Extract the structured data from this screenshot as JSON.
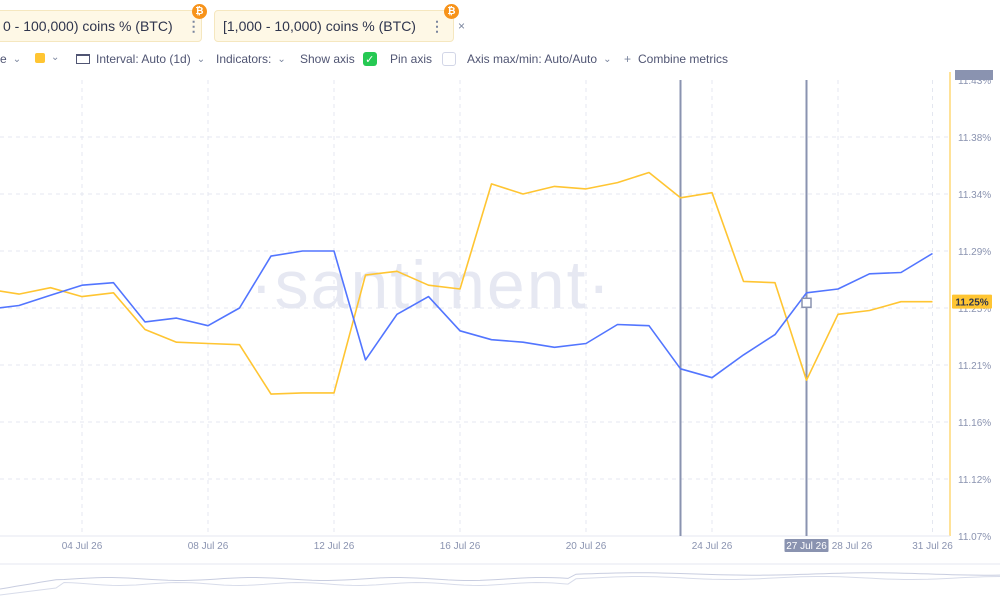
{
  "chips": [
    {
      "label": "0 - 100,000) coins % (BTC)",
      "color": "#ffc532",
      "menu": "⋮",
      "close": "×",
      "coin": "₿"
    },
    {
      "label": "[1,000 - 10,000) coins % (BTC)",
      "color": "#5275ff",
      "menu": "⋮",
      "close": "×",
      "coin": "₿"
    }
  ],
  "toolbar": {
    "style_label": "e",
    "interval_label": "Interval: Auto (1d)",
    "indicators_label": "Indicators:",
    "show_axis_label": "Show axis",
    "pin_axis_label": "Pin axis",
    "axis_maxmin_label": "Axis max/min: Auto/Auto",
    "combine_label": "Combine metrics",
    "combine_prefix": "+",
    "chevron": "⌄",
    "check_mark": "✓"
  },
  "watermark": "·santiment·",
  "chart_data": {
    "type": "line",
    "x": [
      "01 Jul 26",
      "02 Jul 26",
      "03 Jul 26",
      "04 Jul 26",
      "05 Jul 26",
      "06 Jul 26",
      "07 Jul 26",
      "08 Jul 26",
      "09 Jul 26",
      "10 Jul 26",
      "11 Jul 26",
      "12 Jul 26",
      "13 Jul 26",
      "14 Jul 26",
      "15 Jul 26",
      "16 Jul 26",
      "17 Jul 26",
      "18 Jul 26",
      "19 Jul 26",
      "20 Jul 26",
      "21 Jul 26",
      "22 Jul 26",
      "23 Jul 26",
      "24 Jul 26",
      "25 Jul 26",
      "26 Jul 26",
      "27 Jul 26",
      "28 Jul 26",
      "29 Jul 26",
      "30 Jul 26",
      "31 Jul 26"
    ],
    "x_tick_labels": [
      "04 Jul 26",
      "08 Jul 26",
      "12 Jul 26",
      "16 Jul 26",
      "20 Jul 26",
      "24 Jul 26",
      "27 Jul 26",
      "28 Jul 26",
      "31 Jul 26"
    ],
    "series": [
      {
        "color": "#ffc532",
        "values": [
          11.265,
          11.261,
          11.266,
          11.259,
          11.262,
          11.233,
          11.223,
          11.222,
          11.221,
          11.182,
          11.183,
          11.183,
          11.276,
          11.279,
          11.268,
          11.265,
          11.348,
          11.34,
          11.346,
          11.344,
          11.349,
          11.357,
          11.337,
          11.341,
          11.271,
          11.27,
          11.193,
          11.245,
          11.248,
          11.255,
          11.255
        ]
      },
      {
        "color": "#5275ff",
        "values": [
          11.249,
          11.252,
          11.26,
          11.268,
          11.27,
          11.239,
          11.242,
          11.236,
          11.25,
          11.291,
          11.295,
          11.295,
          11.209,
          11.245,
          11.259,
          11.232,
          11.225,
          11.223,
          11.219,
          11.222,
          11.237,
          11.236,
          11.202,
          11.195,
          11.213,
          11.229,
          11.262,
          11.265,
          11.277,
          11.278,
          11.293
        ]
      }
    ],
    "y_ticks": [
      "11.43%",
      "11.38%",
      "11.34%",
      "11.29%",
      "11.25%",
      "11.21%",
      "11.16%",
      "11.12%",
      "11.07%"
    ],
    "ylim": [
      11.07,
      11.43
    ],
    "current_value_label": "11.25%",
    "crosshair_date_label": "27 Jul 26",
    "marker_dates": [
      "23 Jul 26",
      "27 Jul 26"
    ],
    "grid": true
  }
}
